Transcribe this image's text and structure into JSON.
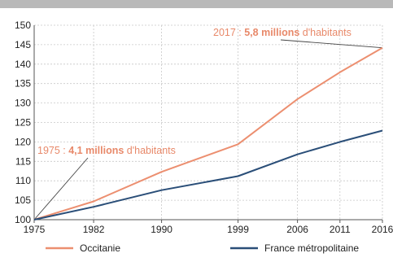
{
  "chart_data": {
    "type": "line",
    "x": [
      "1975",
      "1982",
      "1990",
      "1999",
      "2006",
      "2011",
      "2016"
    ],
    "x_years": [
      1975,
      1982,
      1990,
      1999,
      2006,
      2011,
      2016
    ],
    "ylim": [
      100,
      150
    ],
    "yticks": [
      100,
      105,
      110,
      115,
      120,
      125,
      130,
      135,
      140,
      145,
      150
    ],
    "grid": true,
    "legend_position": "bottom",
    "series": [
      {
        "name": "Occitanie",
        "color": "#ec8f70",
        "values": [
          100,
          104.7,
          112.3,
          119.4,
          131.0,
          137.9,
          144.2
        ]
      },
      {
        "name": "France métropolitaine",
        "color": "#2a4e78",
        "values": [
          100,
          103.3,
          107.6,
          111.2,
          116.8,
          120.0,
          122.9
        ]
      }
    ],
    "annotations": {
      "a2017": {
        "prefix": "2017 : ",
        "bold": "5,8 millions",
        "suffix": " d'habitants"
      },
      "a1975": {
        "prefix": "1975 : ",
        "bold": "4,1 millions",
        "suffix": " d'habitants"
      }
    }
  },
  "colors": {
    "grid": "#c8c8c8",
    "axis": "#555555",
    "annotation": "#e8896a",
    "frame_top": "#b9b9b9"
  }
}
